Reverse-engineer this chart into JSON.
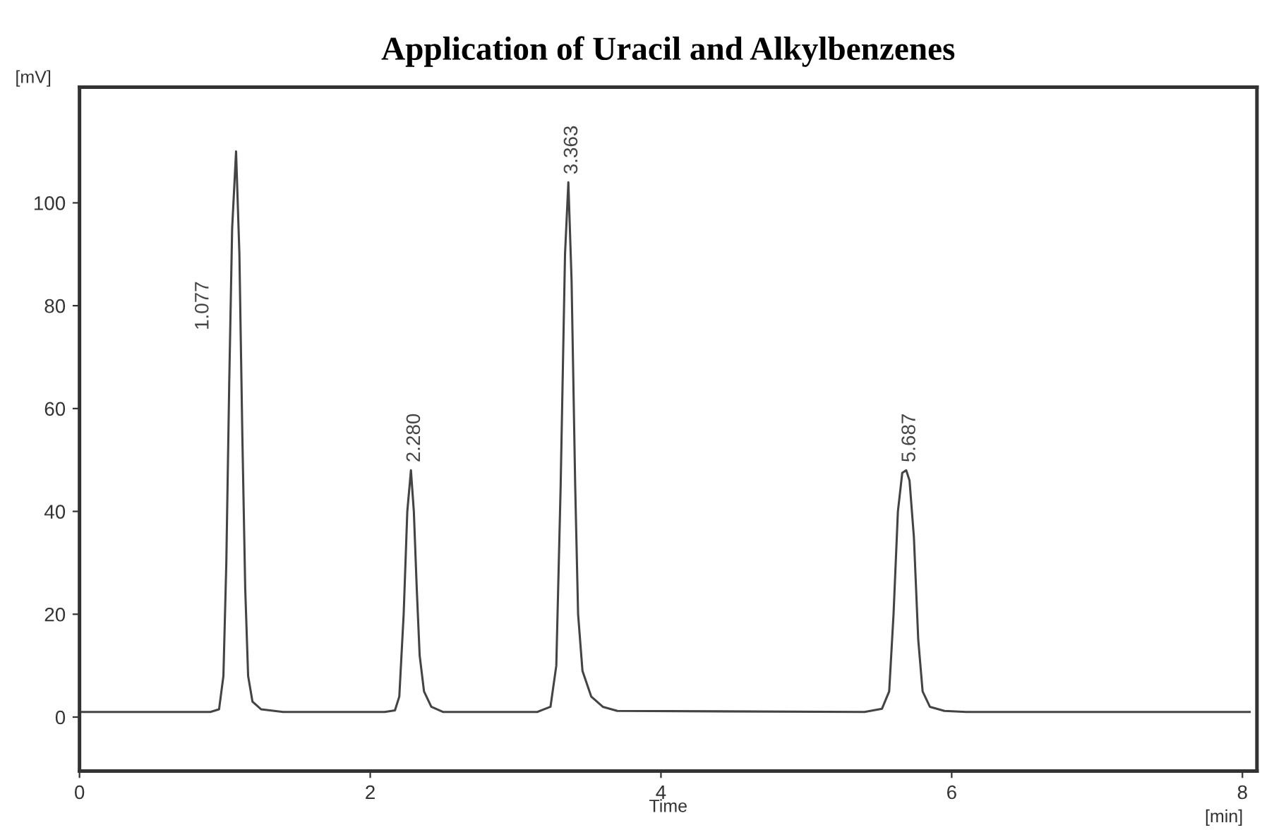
{
  "chart_data": {
    "type": "line",
    "title": "Application of Uracil and Alkylbenzenes",
    "xlabel": "Time",
    "ylabel": "[mV]",
    "x": [
      0,
      0.9,
      0.96,
      0.99,
      1.01,
      1.03,
      1.05,
      1.077,
      1.1,
      1.12,
      1.14,
      1.16,
      1.19,
      1.25,
      1.4,
      2.1,
      2.17,
      2.2,
      2.23,
      2.255,
      2.28,
      2.3,
      2.32,
      2.34,
      2.37,
      2.42,
      2.5,
      3.15,
      3.24,
      3.28,
      3.31,
      3.34,
      3.363,
      3.385,
      3.41,
      3.43,
      3.46,
      3.52,
      3.6,
      3.7,
      5.4,
      5.52,
      5.57,
      5.6,
      5.63,
      5.66,
      5.687,
      5.71,
      5.74,
      5.77,
      5.8,
      5.85,
      5.95,
      6.1,
      8.05
    ],
    "series": [
      {
        "color": "#444444",
        "values": [
          1,
          1,
          1.5,
          8,
          30,
          65,
          95,
          110,
          90,
          55,
          25,
          8,
          3,
          1.5,
          1,
          1,
          1.3,
          4,
          20,
          40,
          48,
          40,
          25,
          12,
          5,
          2,
          1,
          1,
          2,
          10,
          45,
          90,
          104,
          85,
          45,
          20,
          9,
          4,
          2,
          1.2,
          1,
          1.6,
          5,
          20,
          40,
          47.5,
          48,
          46,
          35,
          15,
          5,
          2,
          1.2,
          1,
          1
        ]
      }
    ],
    "xlim": [
      0,
      8.1
    ],
    "xticks": [
      0,
      2,
      4,
      6,
      8
    ],
    "ylim": [
      -10.5,
      122.5
    ],
    "yticks": [
      0,
      20,
      40,
      60,
      80,
      100
    ],
    "grid": false,
    "legend": false,
    "marker": "none",
    "line_style": "solid",
    "annotations": [
      {
        "text": "1.077",
        "x": 1.077,
        "y": 80
      },
      {
        "text": "2.280",
        "x": 2.28,
        "y": 48
      },
      {
        "text": "3.363",
        "x": 3.363,
        "y": 104
      },
      {
        "text": "5.687",
        "x": 5.687,
        "y": 48
      },
      "[min]"
    ]
  }
}
